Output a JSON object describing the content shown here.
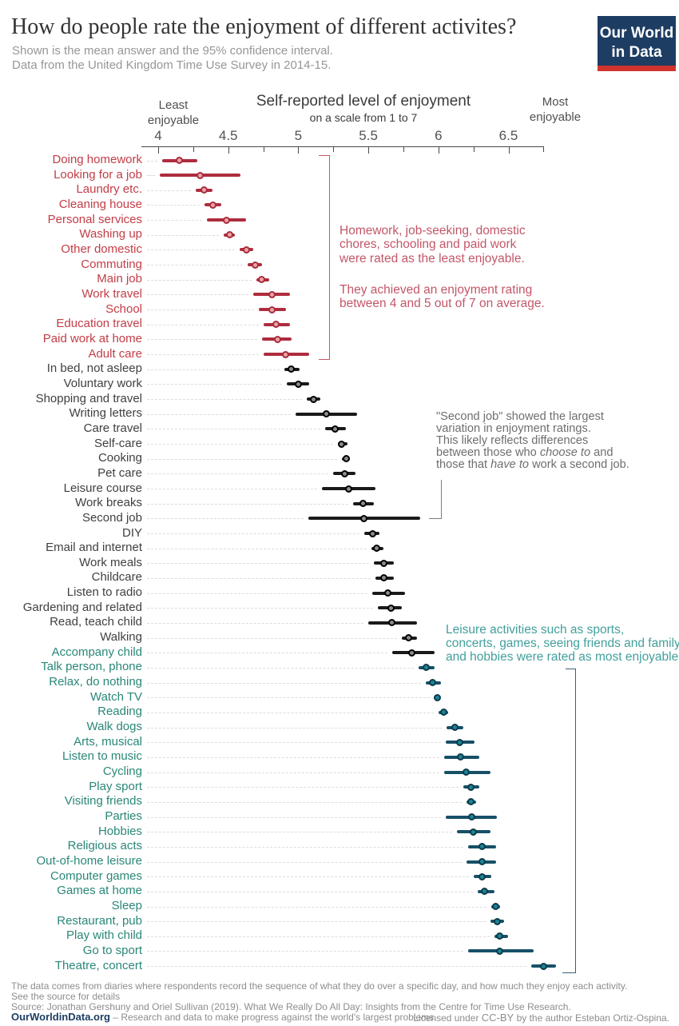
{
  "header": {
    "title": "How do people rate the enjoyment of different activites?",
    "subtitle1": "Shown is the mean answer and the 95% confidence interval.",
    "subtitle2": "Data from the United Kingdom Time Use Survey in 2014-15."
  },
  "logo": {
    "line1": "Our World",
    "line2": "in Data"
  },
  "axis": {
    "title": "Self-reported level of enjoyment",
    "subtitle": "on a scale from 1 to 7",
    "left_label": "Least\nenjoyable",
    "right_label": "Most\nenjoyable",
    "ticks": [
      {
        "value": 4,
        "label": "4"
      },
      {
        "value": 4.5,
        "label": "4.5"
      },
      {
        "value": 5,
        "label": "5"
      },
      {
        "value": 5.5,
        "label": "5.5"
      },
      {
        "value": 6,
        "label": "6"
      },
      {
        "value": 6.5,
        "label": "6.5"
      }
    ],
    "minor_ticks": [
      4.25,
      4.75,
      5.25,
      5.75,
      6.25,
      6.75
    ]
  },
  "chart_data": {
    "type": "scatter",
    "subtype": "dot-plot-with-95ci-errorbars",
    "title": "Self-reported level of enjoyment",
    "xlabel": "on a scale from 1 to 7",
    "xlim": [
      4,
      6.9
    ],
    "grid": "dashed-leader-lines",
    "legend_position": "none",
    "series": [
      {
        "label": "Doing homework",
        "group": "red",
        "mean": 4.15,
        "ci": [
          4.03,
          4.28
        ]
      },
      {
        "label": "Looking for a job",
        "group": "red",
        "mean": 4.3,
        "ci": [
          4.01,
          4.59
        ]
      },
      {
        "label": "Laundry etc.",
        "group": "red",
        "mean": 4.33,
        "ci": [
          4.27,
          4.39
        ]
      },
      {
        "label": "Cleaning house",
        "group": "red",
        "mean": 4.39,
        "ci": [
          4.33,
          4.45
        ]
      },
      {
        "label": "Personal services",
        "group": "red",
        "mean": 4.49,
        "ci": [
          4.35,
          4.63
        ]
      },
      {
        "label": "Washing up",
        "group": "red",
        "mean": 4.51,
        "ci": [
          4.47,
          4.55
        ]
      },
      {
        "label": "Other domestic",
        "group": "red",
        "mean": 4.63,
        "ci": [
          4.58,
          4.68
        ]
      },
      {
        "label": "Commuting",
        "group": "red",
        "mean": 4.69,
        "ci": [
          4.64,
          4.74
        ]
      },
      {
        "label": "Main job",
        "group": "red",
        "mean": 4.74,
        "ci": [
          4.7,
          4.79
        ]
      },
      {
        "label": "Work travel",
        "group": "red",
        "mean": 4.81,
        "ci": [
          4.68,
          4.94
        ]
      },
      {
        "label": "School",
        "group": "red",
        "mean": 4.81,
        "ci": [
          4.72,
          4.91
        ]
      },
      {
        "label": "Education travel",
        "group": "red",
        "mean": 4.84,
        "ci": [
          4.75,
          4.94
        ]
      },
      {
        "label": "Paid work at home",
        "group": "red",
        "mean": 4.85,
        "ci": [
          4.74,
          4.95
        ]
      },
      {
        "label": "Adult care",
        "group": "red",
        "mean": 4.91,
        "ci": [
          4.75,
          5.08
        ]
      },
      {
        "label": "In bed, not asleep",
        "group": "black",
        "mean": 4.95,
        "ci": [
          4.9,
          5.01
        ]
      },
      {
        "label": "Voluntary work",
        "group": "black",
        "mean": 5.0,
        "ci": [
          4.92,
          5.08
        ]
      },
      {
        "label": "Shopping and travel",
        "group": "black",
        "mean": 5.11,
        "ci": [
          5.06,
          5.16
        ]
      },
      {
        "label": "Writing letters",
        "group": "black",
        "mean": 5.2,
        "ci": [
          4.98,
          5.42
        ]
      },
      {
        "label": "Care travel",
        "group": "black",
        "mean": 5.26,
        "ci": [
          5.19,
          5.34
        ]
      },
      {
        "label": "Self-care",
        "group": "black",
        "mean": 5.31,
        "ci": [
          5.28,
          5.35
        ]
      },
      {
        "label": "Cooking",
        "group": "black",
        "mean": 5.34,
        "ci": [
          5.31,
          5.37
        ]
      },
      {
        "label": "Pet care",
        "group": "black",
        "mean": 5.33,
        "ci": [
          5.25,
          5.41
        ]
      },
      {
        "label": "Leisure course",
        "group": "black",
        "mean": 5.36,
        "ci": [
          5.17,
          5.55
        ]
      },
      {
        "label": "Work breaks",
        "group": "black",
        "mean": 5.46,
        "ci": [
          5.39,
          5.54
        ]
      },
      {
        "label": "Second job",
        "group": "black",
        "mean": 5.47,
        "ci": [
          5.07,
          5.87
        ]
      },
      {
        "label": "DIY",
        "group": "black",
        "mean": 5.53,
        "ci": [
          5.47,
          5.58
        ]
      },
      {
        "label": "Email and internet",
        "group": "black",
        "mean": 5.56,
        "ci": [
          5.52,
          5.61
        ]
      },
      {
        "label": "Work meals",
        "group": "black",
        "mean": 5.61,
        "ci": [
          5.54,
          5.68
        ]
      },
      {
        "label": "Childcare",
        "group": "black",
        "mean": 5.61,
        "ci": [
          5.55,
          5.68
        ]
      },
      {
        "label": "Listen to radio",
        "group": "black",
        "mean": 5.64,
        "ci": [
          5.53,
          5.76
        ]
      },
      {
        "label": "Gardening and related",
        "group": "black",
        "mean": 5.66,
        "ci": [
          5.57,
          5.74
        ]
      },
      {
        "label": "Read, teach child",
        "group": "black",
        "mean": 5.67,
        "ci": [
          5.5,
          5.85
        ]
      },
      {
        "label": "Walking",
        "group": "black",
        "mean": 5.79,
        "ci": [
          5.74,
          5.85
        ]
      },
      {
        "label": "Accompany child",
        "group": "teal",
        "marker_group": "black",
        "mean": 5.81,
        "ci": [
          5.67,
          5.97
        ]
      },
      {
        "label": "Talk person, phone",
        "group": "teal",
        "mean": 5.91,
        "ci": [
          5.86,
          5.97
        ]
      },
      {
        "label": "Relax, do nothing",
        "group": "teal",
        "mean": 5.96,
        "ci": [
          5.91,
          6.02
        ]
      },
      {
        "label": "Watch TV",
        "group": "teal",
        "mean": 5.99,
        "ci": [
          5.97,
          6.01
        ]
      },
      {
        "label": "Reading",
        "group": "teal",
        "mean": 6.04,
        "ci": [
          6.0,
          6.07
        ]
      },
      {
        "label": "Walk dogs",
        "group": "teal",
        "mean": 6.12,
        "ci": [
          6.06,
          6.18
        ]
      },
      {
        "label": "Arts, musical",
        "group": "teal",
        "mean": 6.15,
        "ci": [
          6.05,
          6.26
        ]
      },
      {
        "label": "Listen to music",
        "group": "teal",
        "mean": 6.16,
        "ci": [
          6.04,
          6.29
        ]
      },
      {
        "label": "Cycling",
        "group": "teal",
        "mean": 6.2,
        "ci": [
          6.04,
          6.37
        ]
      },
      {
        "label": "Play sport",
        "group": "teal",
        "mean": 6.23,
        "ci": [
          6.18,
          6.29
        ]
      },
      {
        "label": "Visiting friends",
        "group": "teal",
        "mean": 6.23,
        "ci": [
          6.2,
          6.27
        ]
      },
      {
        "label": "Parties",
        "group": "teal",
        "mean": 6.24,
        "ci": [
          6.05,
          6.42
        ]
      },
      {
        "label": "Hobbies",
        "group": "teal",
        "mean": 6.25,
        "ci": [
          6.13,
          6.37
        ]
      },
      {
        "label": "Religious acts",
        "group": "teal",
        "mean": 6.31,
        "ci": [
          6.21,
          6.41
        ]
      },
      {
        "label": "Out-of-home leisure",
        "group": "teal",
        "mean": 6.31,
        "ci": [
          6.2,
          6.41
        ]
      },
      {
        "label": "Computer games",
        "group": "teal",
        "mean": 6.31,
        "ci": [
          6.25,
          6.38
        ]
      },
      {
        "label": "Games at home",
        "group": "teal",
        "mean": 6.33,
        "ci": [
          6.28,
          6.4
        ]
      },
      {
        "label": "Sleep",
        "group": "teal",
        "mean": 6.41,
        "ci": [
          6.38,
          6.44
        ]
      },
      {
        "label": "Restaurant, pub",
        "group": "teal",
        "mean": 6.42,
        "ci": [
          6.37,
          6.47
        ]
      },
      {
        "label": "Play with child",
        "group": "teal",
        "mean": 6.44,
        "ci": [
          6.4,
          6.5
        ]
      },
      {
        "label": "Go to sport",
        "group": "teal",
        "mean": 6.44,
        "ci": [
          6.21,
          6.68
        ]
      },
      {
        "label": "Theatre, concert",
        "group": "teal",
        "mean": 6.75,
        "ci": [
          6.66,
          6.84
        ]
      }
    ]
  },
  "annotations": {
    "least": {
      "para1": "Homework, job-seeking, domestic\nchores, schooling and paid work\nwere rated as the least enjoyable.",
      "para2": "They achieved an enjoyment rating\nbetween 4 and 5 out of 7 on average."
    },
    "second_job": {
      "segments": [
        {
          "t": "\"Second job\" showed the largest\nvariation in enjoyment ratings.\nThis likely reflects differences\nbetween those who "
        },
        {
          "t": "choose to",
          "i": true
        },
        {
          "t": " and\nthose that "
        },
        {
          "t": "have to",
          "i": true
        },
        {
          "t": " work a second job."
        }
      ]
    },
    "most": {
      "text": "Leisure activities such as sports,\nconcerts, games, seeing friends and family\nand hobbies were rated as most enjoyable."
    }
  },
  "footer": {
    "note1": "The data comes from diaries where respondents record the sequence of what they do over a specific day, and how much they enjoy each activity.",
    "note2": "See the source for details",
    "source": "Source: Jonathan Gershuny and Oriel Sullivan (2019). What We Really Do All Day: Insights from the Centre for Time Use Research.",
    "brand": "OurWorldinData.org",
    "brand_rest": " – Research and data to make progress against the world's largest problems.",
    "license_pre": "Licensed under ",
    "license_cc": "CC-BY",
    "license_post": " by the author Esteban Ortiz-Ospina."
  },
  "colors": {
    "logo_bg": "#1d3d63",
    "logo_strip": "#d0342c",
    "red": {
      "label": "#c23d47",
      "bar": "#ae2c3e",
      "dot_fill": "#efa3a6",
      "dot_ring": "#a72c3d"
    },
    "black": {
      "label": "#404040",
      "bar": "#1a1a1a",
      "dot_fill": "#8c8c8c",
      "dot_ring": "#000000"
    },
    "teal": {
      "label": "#2a8778",
      "bar": "#175067",
      "dot_fill": "#1b8596",
      "dot_ring": "#0d3a4a"
    },
    "annotation_red": "#c25768",
    "annotation_gray": "#6e6e6e",
    "annotation_teal": "#42a09c",
    "teal_bracket": "#3c5f77",
    "gray_connector": "#7d7d7d",
    "leader_line": "#dcdcdc",
    "axis": "#4a4a4a"
  }
}
